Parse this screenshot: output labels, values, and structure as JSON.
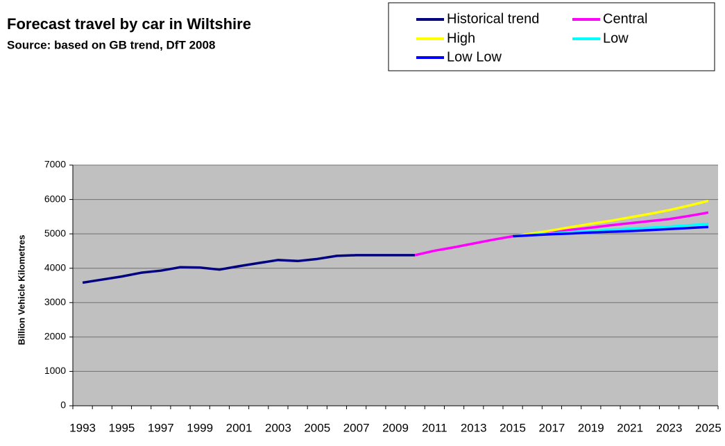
{
  "chart_data": {
    "type": "line",
    "title": "Forecast  travel by car in Wiltshire",
    "subtitle": "Source: based on GB trend, DfT 2008",
    "y_label": "Billion Vehicle Kilometres",
    "categories": [
      "1993",
      null,
      "1995",
      null,
      "1997",
      null,
      "1999",
      null,
      "2001",
      null,
      "2003",
      null,
      "2005",
      null,
      "2007",
      null,
      "2009",
      null,
      "2011",
      null,
      "2013",
      null,
      "2015",
      null,
      "2017",
      null,
      "2019",
      null,
      "2021",
      null,
      "2023",
      null,
      "2025"
    ],
    "ylim": [
      0,
      7000
    ],
    "yticks": [
      0,
      1000,
      2000,
      3000,
      4000,
      5000,
      6000,
      7000
    ],
    "grid": true,
    "legend": "top-right",
    "series": [
      {
        "name": "Historical trend",
        "color": "#000080",
        "values": [
          3580,
          3670,
          3760,
          3870,
          3930,
          4030,
          4020,
          3960,
          4060,
          4150,
          4240,
          4210,
          4270,
          4360,
          4380,
          4380,
          4380,
          4380,
          null,
          null,
          null,
          null,
          null,
          null,
          null,
          null,
          null,
          null,
          null,
          null,
          null,
          null,
          null
        ]
      },
      {
        "name": "Central",
        "color": "#ff00ff",
        "values": [
          null,
          null,
          null,
          null,
          null,
          null,
          null,
          null,
          null,
          null,
          null,
          null,
          null,
          null,
          null,
          null,
          null,
          4380,
          4510,
          4610,
          4720,
          4830,
          4930,
          4990,
          5050,
          5120,
          5180,
          5250,
          5310,
          5370,
          5430,
          5520,
          5620
        ]
      },
      {
        "name": "High",
        "color": "#ffff00",
        "values": [
          null,
          null,
          null,
          null,
          null,
          null,
          null,
          null,
          null,
          null,
          null,
          null,
          null,
          null,
          null,
          null,
          null,
          null,
          null,
          null,
          null,
          null,
          4930,
          5010,
          5100,
          5200,
          5290,
          5380,
          5480,
          5580,
          5690,
          5820,
          5960
        ]
      },
      {
        "name": "Low",
        "color": "#00ffff",
        "values": [
          null,
          null,
          null,
          null,
          null,
          null,
          null,
          null,
          null,
          null,
          null,
          null,
          null,
          null,
          null,
          null,
          null,
          null,
          null,
          null,
          null,
          null,
          4930,
          4970,
          5010,
          5050,
          5080,
          5120,
          5150,
          5180,
          5210,
          5250,
          5290
        ]
      },
      {
        "name": "Low Low",
        "color": "#0000ff",
        "values": [
          null,
          null,
          null,
          null,
          null,
          null,
          null,
          null,
          null,
          null,
          null,
          null,
          null,
          null,
          null,
          null,
          null,
          null,
          null,
          null,
          null,
          null,
          4930,
          4960,
          4990,
          5010,
          5040,
          5060,
          5080,
          5110,
          5140,
          5170,
          5200
        ]
      }
    ]
  }
}
